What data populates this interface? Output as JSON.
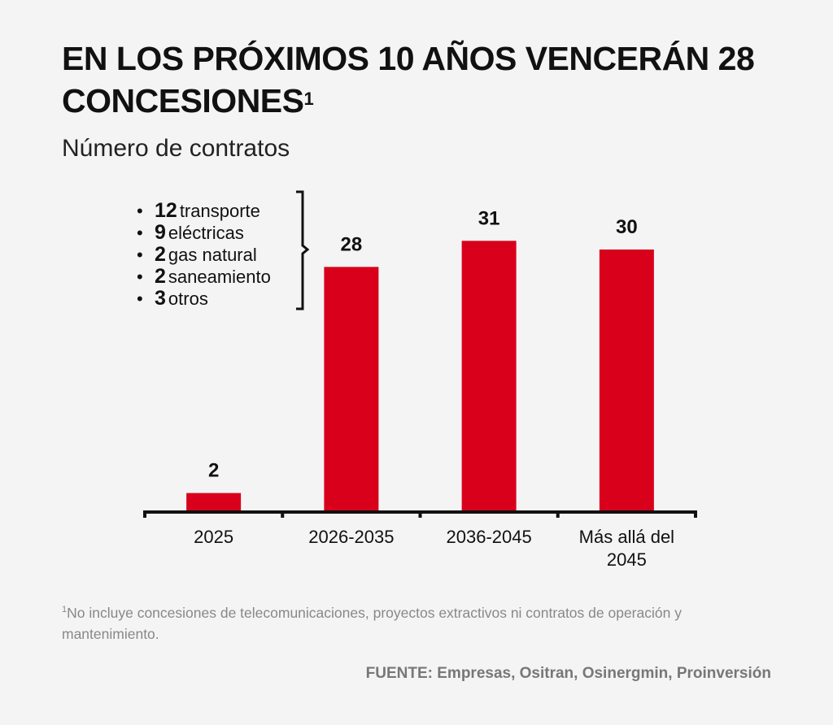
{
  "title": "EN LOS PRÓXIMOS 10 AÑOS VENCERÁN 28 CONCESIONES",
  "title_superscript": "1",
  "subtitle": "Número de contratos",
  "breakdown": [
    {
      "count": "12",
      "label": "transporte"
    },
    {
      "count": "9",
      "label": "eléctricas"
    },
    {
      "count": "2",
      "label": "gas natural"
    },
    {
      "count": "2",
      "label": "saneamiento"
    },
    {
      "count": "3",
      "label": "otros"
    }
  ],
  "footnote_marker": "1",
  "footnote": "No incluye concesiones de telecomunicaciones, proyectos extractivos ni contratos de operación y mantenimiento.",
  "source": "FUENTE: Empresas, Ositran, Osinergmin, Proinversión",
  "chart_data": {
    "type": "bar",
    "categories": [
      "2025",
      "2026-2035",
      "2036-2045",
      "Más allá del 2045"
    ],
    "values": [
      2,
      28,
      31,
      30
    ],
    "data_labels": [
      "2",
      "28",
      "31",
      "30"
    ],
    "ylim": [
      0,
      31
    ],
    "grid": false,
    "bar_color": "#d9001b",
    "axis_color": "#111111"
  }
}
